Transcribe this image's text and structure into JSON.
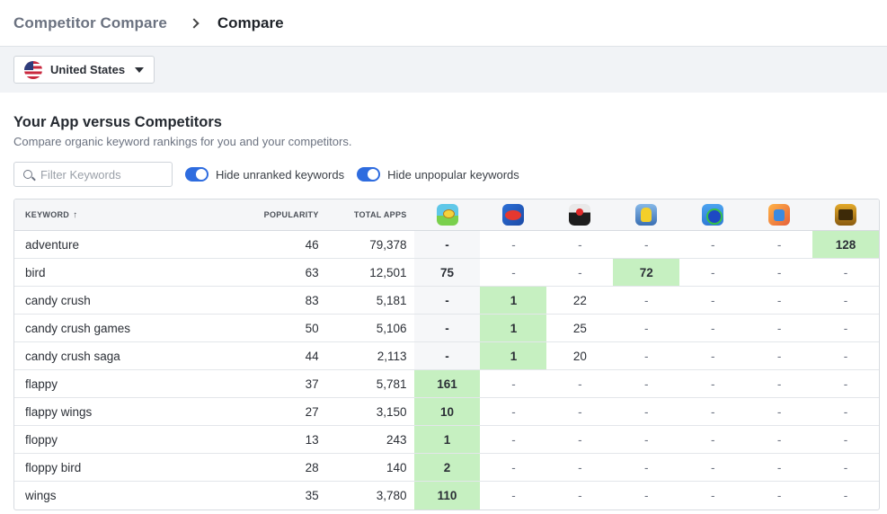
{
  "breadcrumb": {
    "root": "Competitor Compare",
    "current": "Compare"
  },
  "country": {
    "label": "United States"
  },
  "section": {
    "title": "Your App versus Competitors",
    "subtitle": "Compare organic keyword rankings for you and your competitors."
  },
  "filters": {
    "search_placeholder": "Filter Keywords",
    "toggle_unranked": "Hide unranked keywords",
    "toggle_unpopular": "Hide unpopular keywords"
  },
  "table": {
    "headers": {
      "keyword": "KEYWORD",
      "popularity": "POPULARITY",
      "total_apps": "TOTAL APPS",
      "sort_arrow": "↑"
    },
    "app_icons": [
      "flappy-bird-icon",
      "red-bird-game-icon",
      "black-red-button-icon",
      "minion-runner-icon",
      "sonic-icon",
      "subway-surfers-icon",
      "temple-run-icon"
    ],
    "rows": [
      {
        "keyword": "adventure",
        "popularity": "46",
        "total_apps": "79,378",
        "ranks": [
          "-",
          "-",
          "-",
          "-",
          "-",
          "-",
          "128"
        ]
      },
      {
        "keyword": "bird",
        "popularity": "63",
        "total_apps": "12,501",
        "ranks": [
          "75",
          "-",
          "-",
          "72",
          "-",
          "-",
          "-"
        ]
      },
      {
        "keyword": "candy crush",
        "popularity": "83",
        "total_apps": "5,181",
        "ranks": [
          "-",
          "1",
          "22",
          "-",
          "-",
          "-",
          "-"
        ]
      },
      {
        "keyword": "candy crush games",
        "popularity": "50",
        "total_apps": "5,106",
        "ranks": [
          "-",
          "1",
          "25",
          "-",
          "-",
          "-",
          "-"
        ]
      },
      {
        "keyword": "candy crush saga",
        "popularity": "44",
        "total_apps": "2,113",
        "ranks": [
          "-",
          "1",
          "20",
          "-",
          "-",
          "-",
          "-"
        ]
      },
      {
        "keyword": "flappy",
        "popularity": "37",
        "total_apps": "5,781",
        "ranks": [
          "161",
          "-",
          "-",
          "-",
          "-",
          "-",
          "-"
        ]
      },
      {
        "keyword": "flappy wings",
        "popularity": "27",
        "total_apps": "3,150",
        "ranks": [
          "10",
          "-",
          "-",
          "-",
          "-",
          "-",
          "-"
        ]
      },
      {
        "keyword": "floppy",
        "popularity": "13",
        "total_apps": "243",
        "ranks": [
          "1",
          "-",
          "-",
          "-",
          "-",
          "-",
          "-"
        ]
      },
      {
        "keyword": "floppy bird",
        "popularity": "28",
        "total_apps": "140",
        "ranks": [
          "2",
          "-",
          "-",
          "-",
          "-",
          "-",
          "-"
        ]
      },
      {
        "keyword": "wings",
        "popularity": "35",
        "total_apps": "3,780",
        "ranks": [
          "110",
          "-",
          "-",
          "-",
          "-",
          "-",
          "-"
        ]
      }
    ]
  },
  "colors": {
    "ranked_bg": "#c6f0c1",
    "toggle_on": "#2e6cdf",
    "your_app_col_bg": "#f6f7f9"
  },
  "highlighted_cells": [
    [
      0,
      6
    ],
    [
      1,
      3
    ],
    [
      2,
      1
    ],
    [
      3,
      1
    ],
    [
      4,
      1
    ],
    [
      5,
      0
    ],
    [
      6,
      0
    ],
    [
      7,
      0
    ],
    [
      8,
      0
    ],
    [
      9,
      0
    ]
  ]
}
